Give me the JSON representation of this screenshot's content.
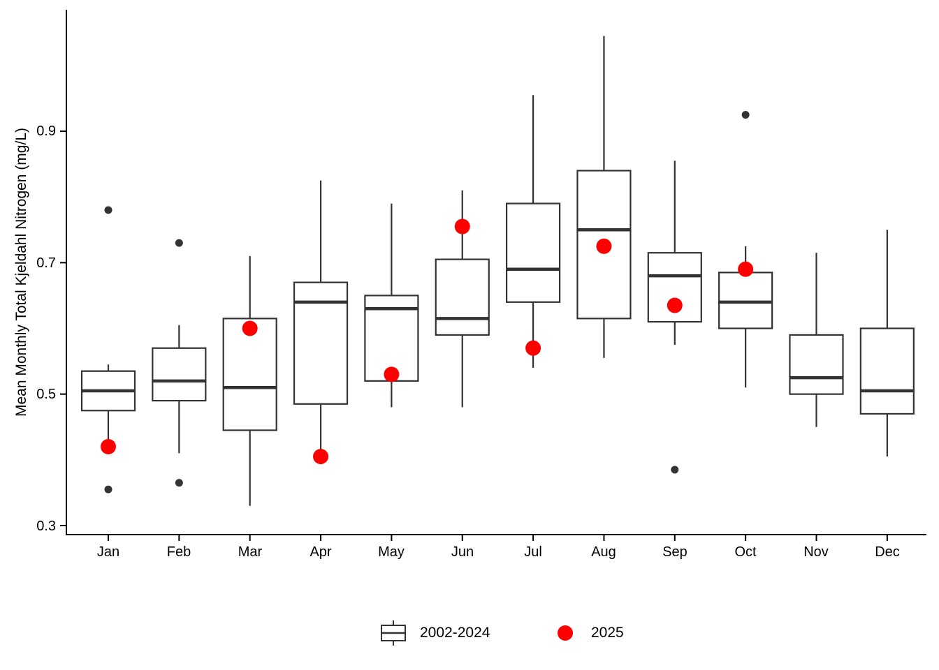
{
  "chart_data": {
    "type": "boxplot",
    "title": "",
    "xlabel": "",
    "ylabel": "Mean Monthly Total Kjeldahl Nitrogen (mg/L)",
    "categories": [
      "Jan",
      "Feb",
      "Mar",
      "Apr",
      "May",
      "Jun",
      "Jul",
      "Aug",
      "Sep",
      "Oct",
      "Nov",
      "Dec"
    ],
    "y_ticks": [
      0.3,
      0.5,
      0.7,
      0.9
    ],
    "y_tick_labels": [
      "0.3",
      "0.5",
      "0.7",
      "0.9"
    ],
    "ylim": [
      0.29,
      1.08
    ],
    "grid": false,
    "legend": {
      "position": "bottom",
      "items": [
        {
          "glyph": "boxplot",
          "label": "2002-2024"
        },
        {
          "glyph": "point",
          "label": "2025"
        }
      ]
    },
    "series": [
      {
        "name": "2002-2024",
        "type": "box",
        "boxes": [
          {
            "month": "Jan",
            "low": 0.43,
            "q1": 0.475,
            "median": 0.505,
            "q3": 0.535,
            "high": 0.545,
            "outliers": [
              0.78,
              0.355
            ]
          },
          {
            "month": "Feb",
            "low": 0.41,
            "q1": 0.49,
            "median": 0.52,
            "q3": 0.57,
            "high": 0.605,
            "outliers": [
              0.73,
              0.365
            ]
          },
          {
            "month": "Mar",
            "low": 0.33,
            "q1": 0.445,
            "median": 0.51,
            "q3": 0.615,
            "high": 0.71,
            "outliers": []
          },
          {
            "month": "Apr",
            "low": 0.4,
            "q1": 0.485,
            "median": 0.64,
            "q3": 0.67,
            "high": 0.825,
            "outliers": []
          },
          {
            "month": "May",
            "low": 0.48,
            "q1": 0.52,
            "median": 0.63,
            "q3": 0.65,
            "high": 0.79,
            "outliers": []
          },
          {
            "month": "Jun",
            "low": 0.48,
            "q1": 0.59,
            "median": 0.615,
            "q3": 0.705,
            "high": 0.81,
            "outliers": []
          },
          {
            "month": "Jul",
            "low": 0.54,
            "q1": 0.64,
            "median": 0.69,
            "q3": 0.79,
            "high": 0.955,
            "outliers": []
          },
          {
            "month": "Aug",
            "low": 0.555,
            "q1": 0.615,
            "median": 0.75,
            "q3": 0.84,
            "high": 1.045,
            "outliers": []
          },
          {
            "month": "Sep",
            "low": 0.575,
            "q1": 0.61,
            "median": 0.68,
            "q3": 0.715,
            "high": 0.855,
            "outliers": [
              0.385
            ]
          },
          {
            "month": "Oct",
            "low": 0.51,
            "q1": 0.6,
            "median": 0.64,
            "q3": 0.685,
            "high": 0.725,
            "outliers": [
              0.925
            ]
          },
          {
            "month": "Nov",
            "low": 0.45,
            "q1": 0.5,
            "median": 0.525,
            "q3": 0.59,
            "high": 0.715,
            "outliers": []
          },
          {
            "month": "Dec",
            "low": 0.405,
            "q1": 0.47,
            "median": 0.505,
            "q3": 0.6,
            "high": 0.75,
            "outliers": []
          }
        ]
      },
      {
        "name": "2025",
        "type": "point",
        "points": [
          {
            "month": "Jan",
            "value": 0.42
          },
          {
            "month": "Mar",
            "value": 0.6
          },
          {
            "month": "Apr",
            "value": 0.405
          },
          {
            "month": "May",
            "value": 0.53
          },
          {
            "month": "Jun",
            "value": 0.755
          },
          {
            "month": "Jul",
            "value": 0.57
          },
          {
            "month": "Aug",
            "value": 0.725
          },
          {
            "month": "Sep",
            "value": 0.635
          },
          {
            "month": "Oct",
            "value": 0.69
          }
        ]
      }
    ],
    "colors": {
      "box_line": "#333333",
      "box_fill": "#ffffff",
      "outlier": "#333333",
      "point_2025": "#ff0000",
      "axis": "#000000",
      "text": "#000000",
      "background": "#ffffff"
    }
  }
}
